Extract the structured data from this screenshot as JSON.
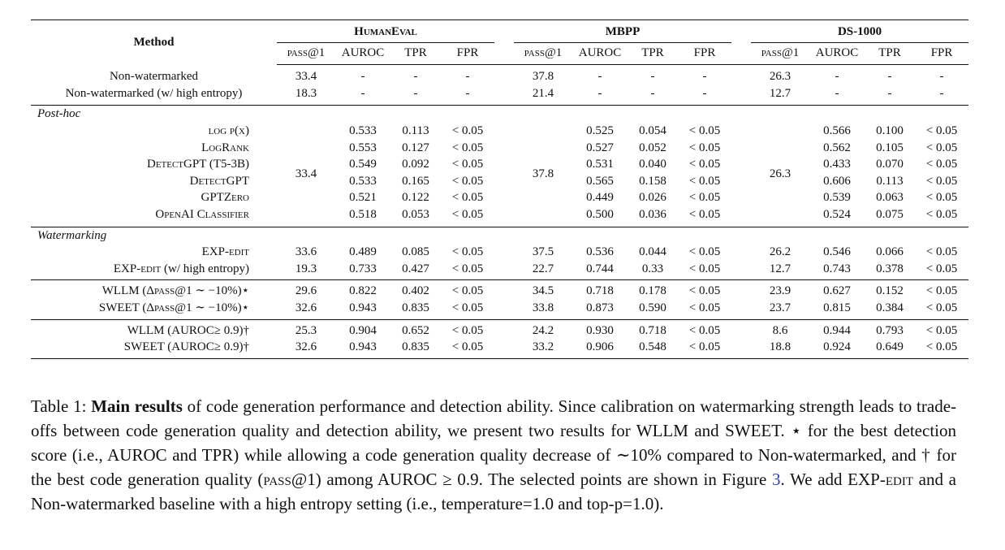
{
  "table": {
    "method_header": "Method",
    "datasets": [
      "HumanEval",
      "MBPP",
      "DS-1000"
    ],
    "subheaders": [
      "pass@1",
      "AUROC",
      "TPR",
      "FPR"
    ],
    "baseline_rows": [
      {
        "method": "Non-watermarked",
        "bold": true,
        "values": [
          [
            "33.4",
            "-",
            "-",
            "-"
          ],
          [
            "37.8",
            "-",
            "-",
            "-"
          ],
          [
            "26.3",
            "-",
            "-",
            "-"
          ]
        ]
      },
      {
        "method": "Non-watermarked (w/ high entropy)",
        "bold": true,
        "values": [
          [
            "18.3",
            "-",
            "-",
            "-"
          ],
          [
            "21.4",
            "-",
            "-",
            "-"
          ],
          [
            "12.7",
            "-",
            "-",
            "-"
          ]
        ]
      }
    ],
    "posthoc": {
      "label": "Post-hoc",
      "pass1": [
        "33.4",
        "37.8",
        "26.3"
      ],
      "rows": [
        {
          "method": "log p(x)",
          "values": [
            [
              "0.533",
              "0.113",
              "< 0.05"
            ],
            [
              "0.525",
              "0.054",
              "< 0.05"
            ],
            [
              "0.566",
              "0.100",
              "< 0.05"
            ]
          ]
        },
        {
          "method": "LogRank",
          "values": [
            [
              "0.553",
              "0.127",
              "< 0.05"
            ],
            [
              "0.527",
              "0.052",
              "< 0.05"
            ],
            [
              "0.562",
              "0.105",
              "< 0.05"
            ]
          ]
        },
        {
          "method": "DetectGPT (T5-3B)",
          "values": [
            [
              "0.549",
              "0.092",
              "< 0.05"
            ],
            [
              "0.531",
              "0.040",
              "< 0.05"
            ],
            [
              "0.433",
              "0.070",
              "< 0.05"
            ]
          ]
        },
        {
          "method": "DetectGPT",
          "values": [
            [
              "0.533",
              "0.165",
              "< 0.05"
            ],
            [
              "0.565",
              "0.158",
              "< 0.05"
            ],
            [
              "0.606",
              "0.113",
              "< 0.05"
            ]
          ]
        },
        {
          "method": "GPTZero",
          "values": [
            [
              "0.521",
              "0.122",
              "< 0.05"
            ],
            [
              "0.449",
              "0.026",
              "< 0.05"
            ],
            [
              "0.539",
              "0.063",
              "< 0.05"
            ]
          ]
        },
        {
          "method": "OpenAI Classifier",
          "values": [
            [
              "0.518",
              "0.053",
              "< 0.05"
            ],
            [
              "0.500",
              "0.036",
              "< 0.05"
            ],
            [
              "0.524",
              "0.075",
              "< 0.05"
            ]
          ]
        }
      ]
    },
    "watermarking": {
      "label": "Watermarking",
      "blocks": [
        [
          {
            "method": "EXP-edit",
            "values": [
              [
                "33.6",
                "0.489",
                "0.085",
                "< 0.05"
              ],
              [
                "37.5",
                "0.536",
                "0.044",
                "< 0.05"
              ],
              [
                "26.2",
                "0.546",
                "0.066",
                "< 0.05"
              ]
            ],
            "bold_cells": [
              "0.0",
              "1.0",
              "2.0"
            ]
          },
          {
            "method": "EXP-edit (w/ high entropy)",
            "values": [
              [
                "19.3",
                "0.733",
                "0.427",
                "< 0.05"
              ],
              [
                "22.7",
                "0.744",
                "0.33",
                "< 0.05"
              ],
              [
                "12.7",
                "0.743",
                "0.378",
                "< 0.05"
              ]
            ],
            "bold_cells": []
          }
        ],
        [
          {
            "method": "WLLM (Δpass@1 ∼ −10%)⋆",
            "values": [
              [
                "29.6",
                "0.822",
                "0.402",
                "< 0.05"
              ],
              [
                "34.5",
                "0.718",
                "0.178",
                "< 0.05"
              ],
              [
                "23.9",
                "0.627",
                "0.152",
                "< 0.05"
              ]
            ],
            "bold_cells": []
          },
          {
            "method": "SWEET (Δpass@1 ∼ −10%)⋆",
            "values": [
              [
                "32.6",
                "0.943",
                "0.835",
                "< 0.05"
              ],
              [
                "33.8",
                "0.873",
                "0.590",
                "< 0.05"
              ],
              [
                "23.7",
                "0.815",
                "0.384",
                "< 0.05"
              ]
            ],
            "bold_cells": [
              "0.1",
              "0.2",
              "1.1",
              "1.2",
              "2.1",
              "2.2"
            ]
          }
        ],
        [
          {
            "method": "WLLM (AUROC≥ 0.9)†",
            "values": [
              [
                "25.3",
                "0.904",
                "0.652",
                "< 0.05"
              ],
              [
                "24.2",
                "0.930",
                "0.718",
                "< 0.05"
              ],
              [
                "8.6",
                "0.944",
                "0.793",
                "< 0.05"
              ]
            ],
            "bold_cells": []
          },
          {
            "method": "SWEET (AUROC≥ 0.9)†",
            "values": [
              [
                "32.6",
                "0.943",
                "0.835",
                "< 0.05"
              ],
              [
                "33.2",
                "0.906",
                "0.548",
                "< 0.05"
              ],
              [
                "18.8",
                "0.924",
                "0.649",
                "< 0.05"
              ]
            ],
            "bold_cells": []
          }
        ]
      ]
    }
  },
  "caption": {
    "prefix": "Table 1: ",
    "bold": "Main results",
    "text_1": " of code generation performance and detection ability. Since calibration on watermarking strength leads to trade-offs between code generation quality and detection ability, we present two results for WLLM and SWEET. ⋆ for the best detection score (i.e., AUROC and TPR) while allowing a code generation quality decrease of ∼10% compared to Non-watermarked, and † for the best code generation quality (pass@1) among AUROC ≥ 0.9. The selected points are shown in Figure ",
    "link": "3",
    "text_2": ". We add EXP-edit and a Non-watermarked baseline with a high entropy setting (i.e., temperature=1.0 and top-p=1.0)."
  }
}
